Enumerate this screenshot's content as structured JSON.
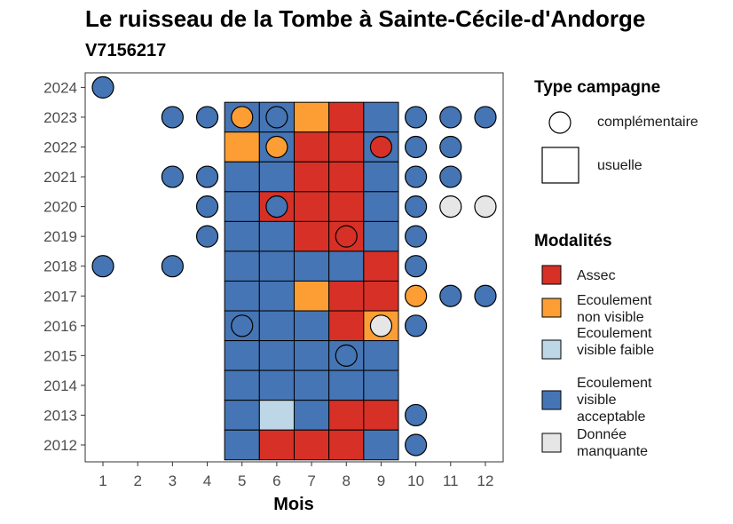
{
  "title": "Le ruisseau de la Tombe à Sainte-Cécile-d'Andorge",
  "subtitle": "V7156217",
  "chart_data": {
    "type": "heatmap",
    "xlabel": "Mois",
    "ylabel": "",
    "x_ticks": [
      1,
      2,
      3,
      4,
      5,
      6,
      7,
      8,
      9,
      10,
      11,
      12
    ],
    "y_ticks": [
      2012,
      2013,
      2014,
      2015,
      2016,
      2017,
      2018,
      2019,
      2020,
      2021,
      2022,
      2023,
      2024
    ],
    "legend_campagne": {
      "title": "Type campagne",
      "entries": [
        {
          "key": "complementaire",
          "label": "complémentaire",
          "shape": "circle"
        },
        {
          "key": "usuelle",
          "label": "usuelle",
          "shape": "square"
        }
      ]
    },
    "legend_modalites": {
      "title": "Modalités",
      "entries": [
        {
          "key": "assec",
          "label": "Assec",
          "color": "#d73027"
        },
        {
          "key": "env",
          "label": "Ecoulement non visible",
          "color": "#fc9e33"
        },
        {
          "key": "evf",
          "label": "Ecoulement visible faible",
          "color": "#bdd7e7"
        },
        {
          "key": "eva",
          "label": "Ecoulement visible acceptable",
          "color": "#4575b4"
        },
        {
          "key": "dm",
          "label": "Donnée manquante",
          "color": "#e6e6e6"
        }
      ]
    },
    "usuelle": [
      {
        "year": 2023,
        "values": [
          "eva",
          "eva",
          "env",
          "assec",
          "eva"
        ]
      },
      {
        "year": 2022,
        "values": [
          "env",
          "eva",
          "assec",
          "assec",
          "eva"
        ]
      },
      {
        "year": 2021,
        "values": [
          "eva",
          "eva",
          "assec",
          "assec",
          "eva"
        ]
      },
      {
        "year": 2020,
        "values": [
          "eva",
          "assec",
          "assec",
          "assec",
          "eva"
        ]
      },
      {
        "year": 2019,
        "values": [
          "eva",
          "eva",
          "assec",
          "assec",
          "eva"
        ]
      },
      {
        "year": 2018,
        "values": [
          "eva",
          "eva",
          "eva",
          "eva",
          "assec"
        ]
      },
      {
        "year": 2017,
        "values": [
          "eva",
          "eva",
          "env",
          "assec",
          "assec"
        ]
      },
      {
        "year": 2016,
        "values": [
          "eva",
          "eva",
          "eva",
          "assec",
          "env"
        ]
      },
      {
        "year": 2015,
        "values": [
          "eva",
          "eva",
          "eva",
          "eva",
          "eva"
        ]
      },
      {
        "year": 2014,
        "values": [
          "eva",
          "eva",
          "eva",
          "eva",
          "eva"
        ]
      },
      {
        "year": 2013,
        "values": [
          "eva",
          "evf",
          "eva",
          "assec",
          "assec"
        ]
      },
      {
        "year": 2012,
        "values": [
          "eva",
          "assec",
          "assec",
          "assec",
          "eva"
        ]
      }
    ],
    "usuelle_months": [
      5,
      6,
      7,
      8,
      9
    ],
    "complementaire": [
      {
        "year": 2024,
        "month": 1,
        "value": "eva"
      },
      {
        "year": 2023,
        "month": 3,
        "value": "eva"
      },
      {
        "year": 2023,
        "month": 4,
        "value": "eva"
      },
      {
        "year": 2023,
        "month": 5,
        "value": "env"
      },
      {
        "year": 2023,
        "month": 6,
        "value": "eva"
      },
      {
        "year": 2023,
        "month": 10,
        "value": "eva"
      },
      {
        "year": 2023,
        "month": 11,
        "value": "eva"
      },
      {
        "year": 2023,
        "month": 12,
        "value": "eva"
      },
      {
        "year": 2022,
        "month": 6,
        "value": "env"
      },
      {
        "year": 2022,
        "month": 9,
        "value": "assec"
      },
      {
        "year": 2022,
        "month": 10,
        "value": "eva"
      },
      {
        "year": 2022,
        "month": 11,
        "value": "eva"
      },
      {
        "year": 2021,
        "month": 3,
        "value": "eva"
      },
      {
        "year": 2021,
        "month": 4,
        "value": "eva"
      },
      {
        "year": 2021,
        "month": 10,
        "value": "eva"
      },
      {
        "year": 2021,
        "month": 11,
        "value": "eva"
      },
      {
        "year": 2020,
        "month": 4,
        "value": "eva"
      },
      {
        "year": 2020,
        "month": 6,
        "value": "eva"
      },
      {
        "year": 2020,
        "month": 10,
        "value": "eva"
      },
      {
        "year": 2020,
        "month": 11,
        "value": "dm"
      },
      {
        "year": 2020,
        "month": 12,
        "value": "dm"
      },
      {
        "year": 2019,
        "month": 4,
        "value": "eva"
      },
      {
        "year": 2019,
        "month": 8,
        "value": "assec"
      },
      {
        "year": 2019,
        "month": 10,
        "value": "eva"
      },
      {
        "year": 2018,
        "month": 1,
        "value": "eva"
      },
      {
        "year": 2018,
        "month": 3,
        "value": "eva"
      },
      {
        "year": 2018,
        "month": 10,
        "value": "eva"
      },
      {
        "year": 2017,
        "month": 10,
        "value": "env"
      },
      {
        "year": 2017,
        "month": 11,
        "value": "eva"
      },
      {
        "year": 2017,
        "month": 12,
        "value": "eva"
      },
      {
        "year": 2016,
        "month": 5,
        "value": "eva"
      },
      {
        "year": 2016,
        "month": 9,
        "value": "dm"
      },
      {
        "year": 2016,
        "month": 10,
        "value": "eva"
      },
      {
        "year": 2015,
        "month": 8,
        "value": "eva"
      },
      {
        "year": 2013,
        "month": 10,
        "value": "eva"
      },
      {
        "year": 2012,
        "month": 10,
        "value": "eva"
      }
    ]
  }
}
